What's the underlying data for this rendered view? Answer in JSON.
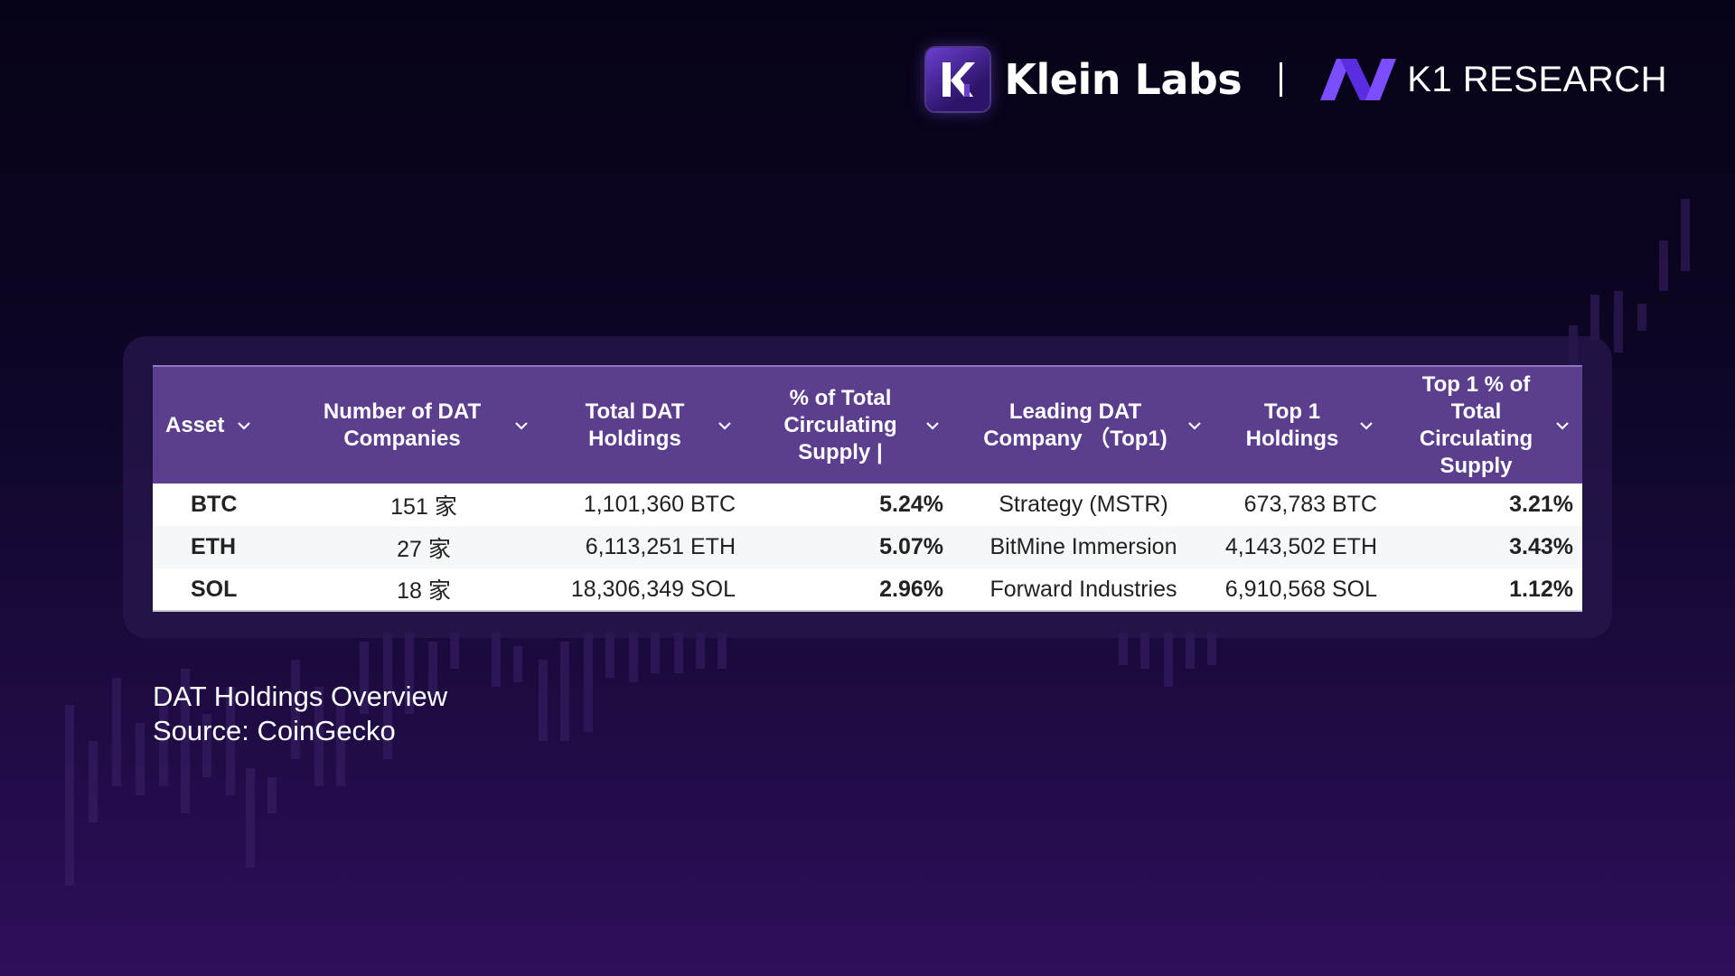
{
  "brand": {
    "klein_name": "Klein Labs",
    "k1_name": "K1 RESEARCH",
    "klein_icon": "klein-k-logo-icon",
    "k1_icon": "k1-logo-icon",
    "accent": "#6b3fd1"
  },
  "table": {
    "columns": [
      "Asset",
      "Number of DAT\nCompanies",
      "Total DAT\nHoldings",
      "% of Total\nCirculating\nSupply |",
      "Leading DAT\nCompany （Top1)",
      "Top 1\nHoldings",
      "Top 1 % of\nTotal\nCirculating\nSupply"
    ],
    "header_color": "#5c3e8f",
    "rows": [
      [
        "BTC",
        "151 家",
        "1,101,360 BTC",
        "5.24%",
        "Strategy (MSTR)",
        "673,783 BTC",
        "3.21%"
      ],
      [
        "ETH",
        "27 家",
        "6,113,251 ETH",
        "5.07%",
        "BitMine Immersion",
        "4,143,502 ETH",
        "3.43%"
      ],
      [
        "SOL",
        "18 家",
        "18,306,349 SOL",
        "2.96%",
        "Forward Industries",
        "6,910,568 SOL",
        "1.12%"
      ]
    ]
  },
  "caption": {
    "title": "DAT Holdings Overview",
    "source": "Source: CoinGecko"
  }
}
